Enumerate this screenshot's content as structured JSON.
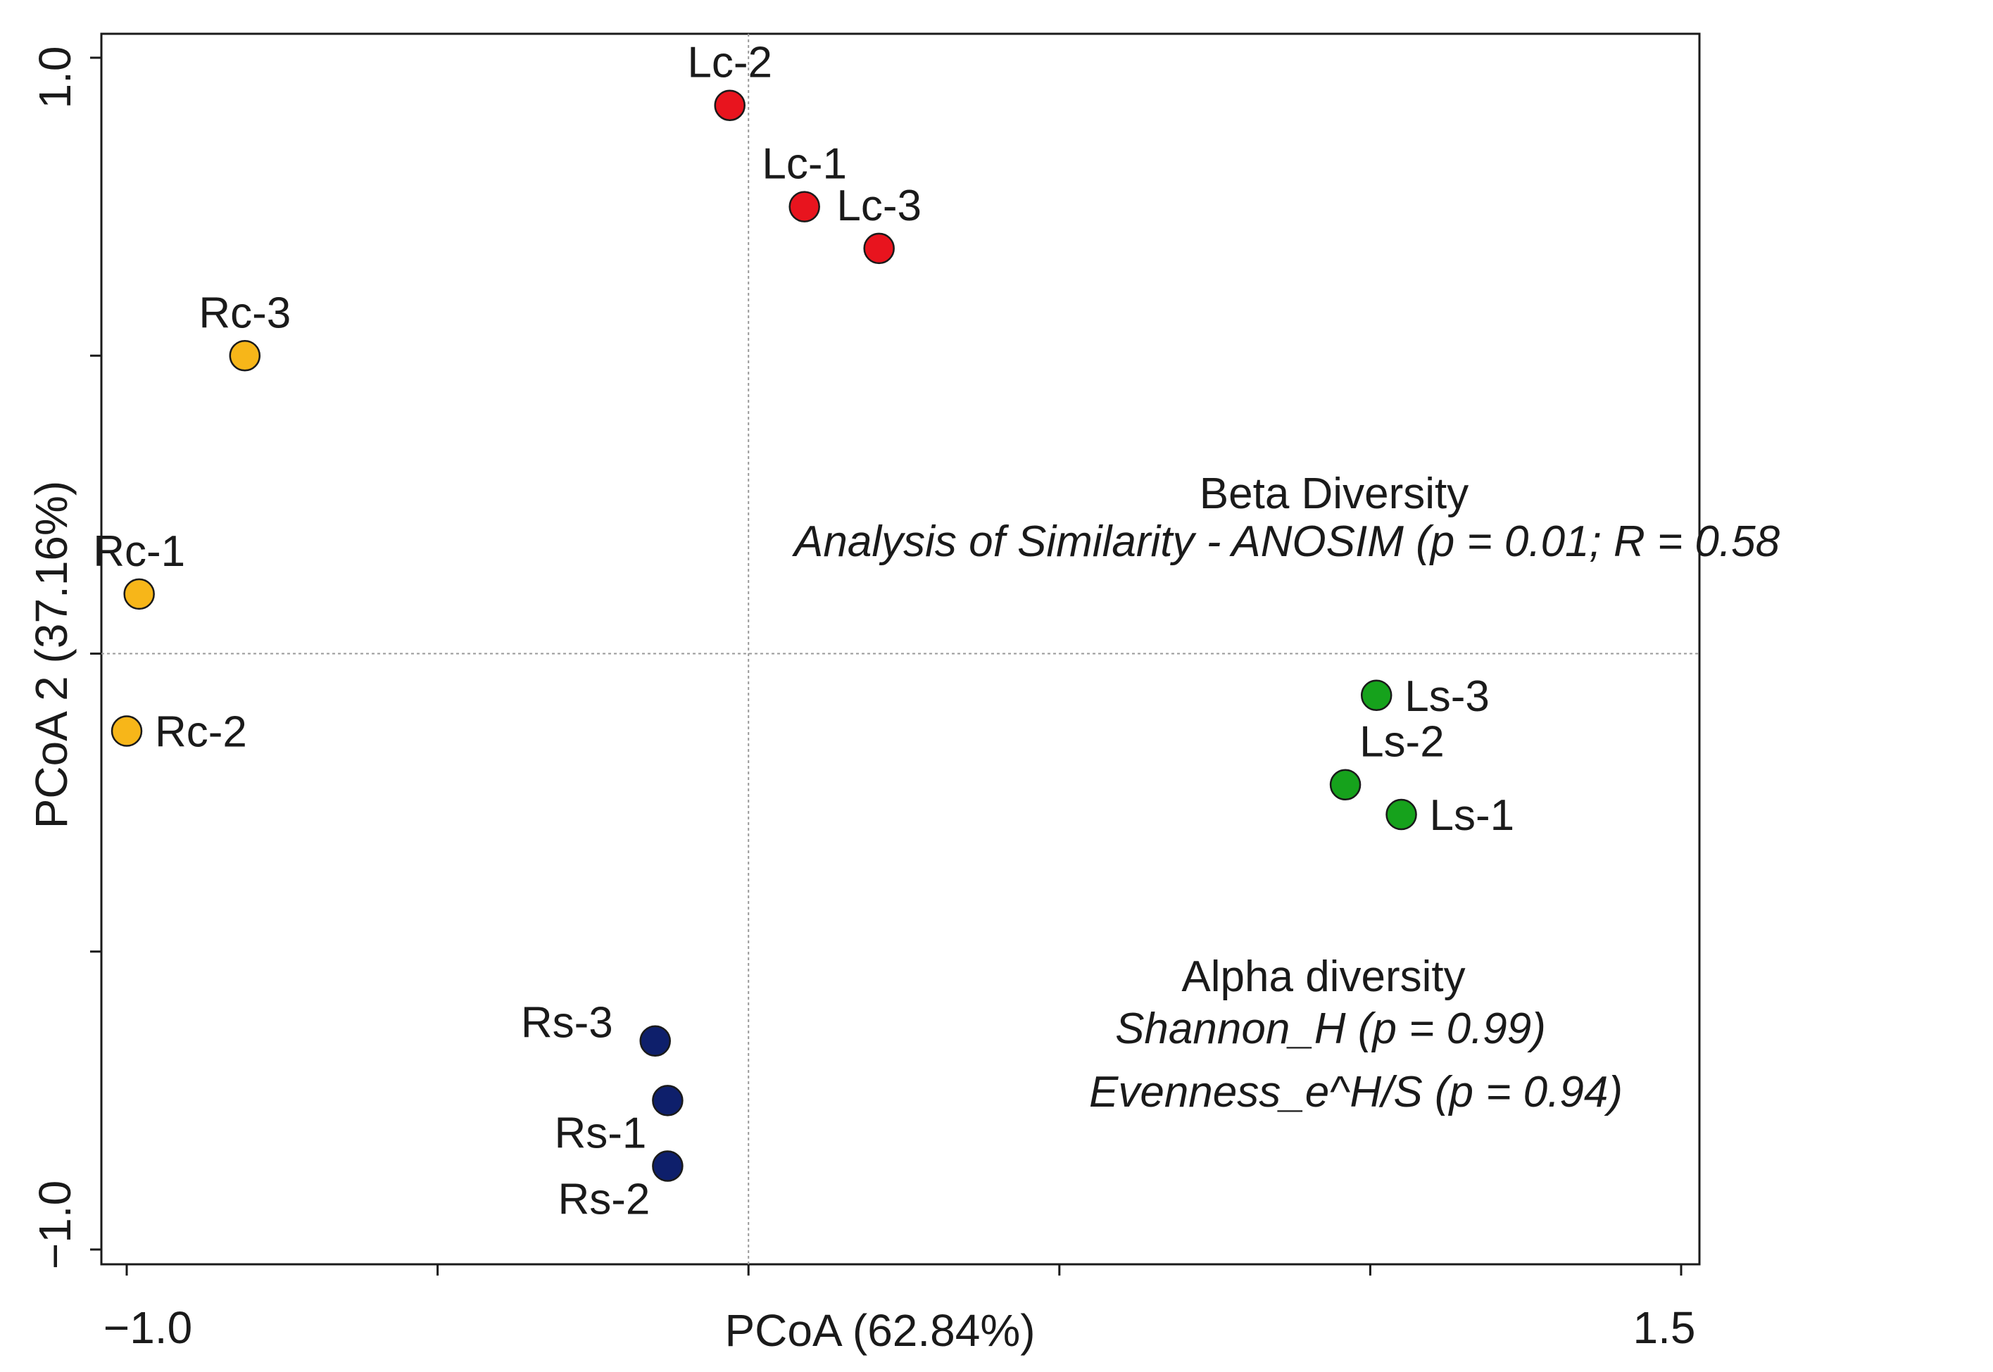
{
  "chart_data": {
    "type": "scatter",
    "xlabel": "PCoA (62.84%)",
    "ylabel": "PCoA 2 (37.16%)",
    "xlim": [
      -1.0,
      1.5
    ],
    "ylim": [
      -1.0,
      1.0
    ],
    "x_tick_labels": [
      "−1.0",
      "1.5"
    ],
    "y_tick_labels": [
      "−1.0",
      "1.0"
    ],
    "grid": false,
    "zero_lines": true,
    "series": [
      {
        "color": "#e8141e",
        "points": [
          {
            "label": "Lc-2",
            "x": -0.03,
            "y": 0.92
          },
          {
            "label": "Lc-1",
            "x": 0.09,
            "y": 0.75
          },
          {
            "label": "Lc-3",
            "x": 0.21,
            "y": 0.68
          }
        ]
      },
      {
        "color": "#f7b619",
        "points": [
          {
            "label": "Rc-3",
            "x": -0.81,
            "y": 0.5
          },
          {
            "label": "Rc-1",
            "x": -0.98,
            "y": 0.1
          },
          {
            "label": "Rc-2",
            "x": -1.0,
            "y": -0.13
          }
        ]
      },
      {
        "color": "#16a21c",
        "points": [
          {
            "label": "Ls-3",
            "x": 1.01,
            "y": -0.07
          },
          {
            "label": "Ls-2",
            "x": 0.96,
            "y": -0.22
          },
          {
            "label": "Ls-1",
            "x": 1.05,
            "y": -0.27
          }
        ]
      },
      {
        "color": "#0e1f6b",
        "points": [
          {
            "label": "Rs-3",
            "x": -0.15,
            "y": -0.65
          },
          {
            "label": "Rs-1",
            "x": -0.13,
            "y": -0.75
          },
          {
            "label": "Rs-2",
            "x": -0.13,
            "y": -0.86
          }
        ]
      }
    ],
    "annotations": [
      {
        "title": "Beta Diversity",
        "lines": [
          "Analysis of Similarity - ANOSIM (p = 0.01; R = 0.58"
        ]
      },
      {
        "title": "Alpha diversity",
        "lines": [
          "Shannon_H (p = 0.99)",
          "Evenness_e^H/S (p = 0.94)"
        ]
      }
    ]
  }
}
